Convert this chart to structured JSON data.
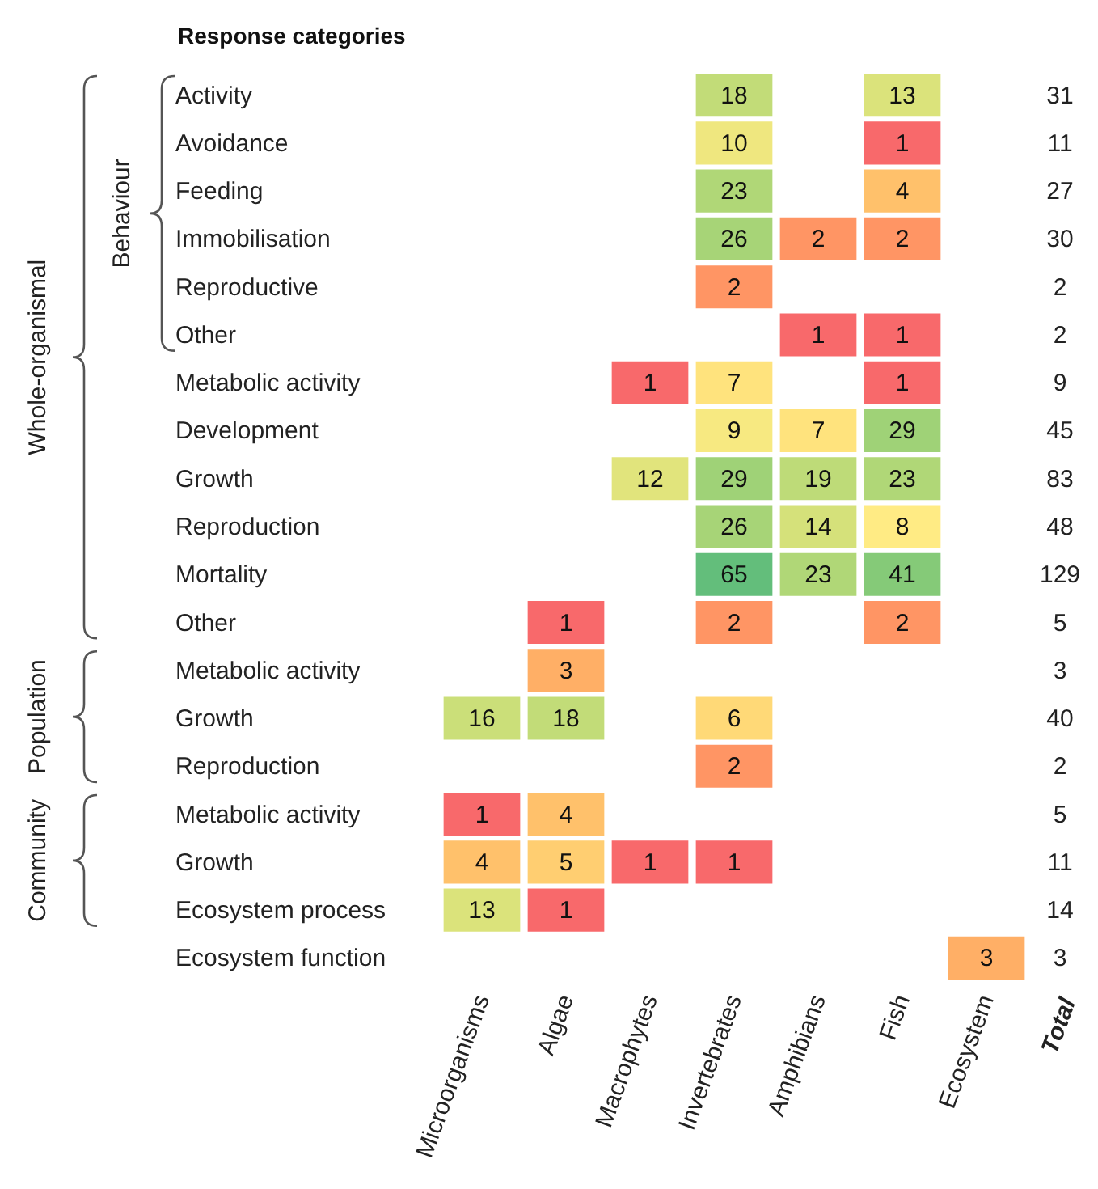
{
  "chart_data": {
    "type": "heatmap",
    "title": "Response categories",
    "categories": [
      "Microorganisms",
      "Algae",
      "Macrophytes",
      "Invertebrates",
      "Amphibians",
      "Fish",
      "Ecosystem"
    ],
    "y_categories": [
      "Activity",
      "Avoidance",
      "Feeding",
      "Immobilisation",
      "Reproductive",
      "Other",
      "Metabolic activity",
      "Development",
      "Growth",
      "Reproduction",
      "Mortality",
      "Other",
      "Metabolic activity",
      "Growth",
      "Reproduction",
      "Metabolic activity",
      "Growth",
      "Ecosystem process",
      "Ecosystem function"
    ],
    "y2label": "Total",
    "y2_categories": [
      "31",
      "11",
      "27",
      "30",
      "2",
      "2",
      "9",
      "45",
      "83",
      "48",
      "129",
      "5",
      "3",
      "40",
      "2",
      "5",
      "11",
      "14",
      "3"
    ],
    "cells": [
      [
        null,
        null,
        null,
        18,
        null,
        13,
        null
      ],
      [
        null,
        null,
        null,
        10,
        null,
        1,
        null
      ],
      [
        null,
        null,
        null,
        23,
        null,
        4,
        null
      ],
      [
        null,
        null,
        null,
        26,
        2,
        2,
        null
      ],
      [
        null,
        null,
        null,
        2,
        null,
        null,
        null
      ],
      [
        null,
        null,
        null,
        null,
        1,
        1,
        null
      ],
      [
        null,
        null,
        1,
        7,
        null,
        1,
        null
      ],
      [
        null,
        null,
        null,
        9,
        7,
        29,
        null
      ],
      [
        null,
        null,
        12,
        29,
        19,
        23,
        null
      ],
      [
        null,
        null,
        null,
        26,
        14,
        8,
        null
      ],
      [
        null,
        null,
        null,
        65,
        23,
        41,
        null
      ],
      [
        null,
        1,
        null,
        2,
        null,
        2,
        null
      ],
      [
        null,
        3,
        null,
        null,
        null,
        null,
        null
      ],
      [
        16,
        18,
        null,
        6,
        null,
        null,
        null
      ],
      [
        null,
        null,
        null,
        2,
        null,
        null,
        null
      ],
      [
        1,
        4,
        null,
        null,
        null,
        null,
        null
      ],
      [
        4,
        5,
        1,
        1,
        null,
        null,
        null
      ],
      [
        13,
        1,
        null,
        null,
        null,
        null,
        null
      ],
      [
        null,
        null,
        null,
        null,
        null,
        null,
        3
      ]
    ],
    "data_labels": true,
    "annotations": [
      "Behaviour",
      "Whole-organismal",
      "Population",
      "Community"
    ]
  }
}
